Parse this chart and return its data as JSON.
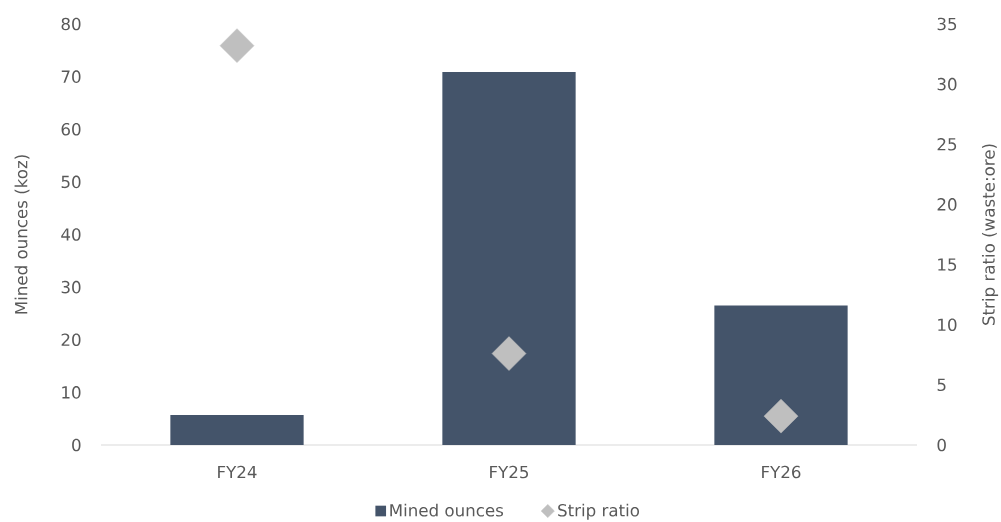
{
  "chart_data": {
    "type": "bar",
    "categories": [
      "FY24",
      "FY25",
      "FY26"
    ],
    "ylabel": "Mined ounces (koz)",
    "y2label": "Strip ratio (waste:ore)",
    "series": [
      {
        "name": "Mined ounces",
        "color": "#44546a",
        "values": [
          5.7,
          70.9,
          26.5
        ]
      },
      {
        "name": "Strip ratio",
        "type": "scatter",
        "axis": "y2",
        "marker": "diamond",
        "color": "#bfbfbf",
        "values": [
          33.2,
          7.6,
          2.4
        ]
      }
    ],
    "ylim": [
      0,
      80
    ],
    "yticks": [
      0,
      10,
      20,
      30,
      40,
      50,
      60,
      70,
      80
    ],
    "y2lim": [
      0,
      35
    ],
    "y2ticks": [
      0,
      5,
      10,
      15,
      20,
      25,
      30,
      35
    ],
    "legend": "bottom"
  }
}
